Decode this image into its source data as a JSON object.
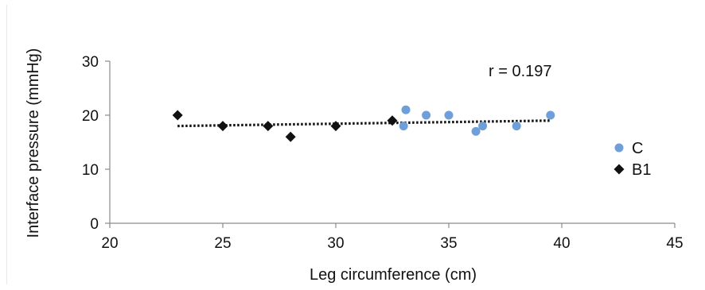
{
  "chart_data": {
    "type": "scatter",
    "title": "",
    "xlabel": "Leg circumference (cm)",
    "ylabel": "Interface pressure (mmHg)",
    "xlim": [
      20,
      45
    ],
    "ylim": [
      0,
      30
    ],
    "xticks": [
      20,
      25,
      30,
      35,
      40,
      45
    ],
    "yticks": [
      0,
      10,
      20,
      30
    ],
    "grid": false,
    "legend_position": "right",
    "annotation": "r = 0.197",
    "series": [
      {
        "name": "C",
        "marker": "circle",
        "color": "#6f9fd8",
        "points": [
          {
            "x": 33.1,
            "y": 21
          },
          {
            "x": 33.0,
            "y": 18
          },
          {
            "x": 34.0,
            "y": 20
          },
          {
            "x": 35.0,
            "y": 20
          },
          {
            "x": 36.2,
            "y": 17
          },
          {
            "x": 36.5,
            "y": 18
          },
          {
            "x": 38.0,
            "y": 18
          },
          {
            "x": 39.5,
            "y": 20
          }
        ]
      },
      {
        "name": "B1",
        "marker": "diamond",
        "color": "#111111",
        "points": [
          {
            "x": 23.0,
            "y": 20
          },
          {
            "x": 25.0,
            "y": 18
          },
          {
            "x": 27.0,
            "y": 18
          },
          {
            "x": 28.0,
            "y": 16
          },
          {
            "x": 30.0,
            "y": 18
          },
          {
            "x": 32.5,
            "y": 19
          }
        ]
      }
    ],
    "trendline": {
      "style": "dotted",
      "color": "#111111",
      "x": [
        23.0,
        39.5
      ],
      "y": [
        18.0,
        19.0
      ]
    }
  }
}
